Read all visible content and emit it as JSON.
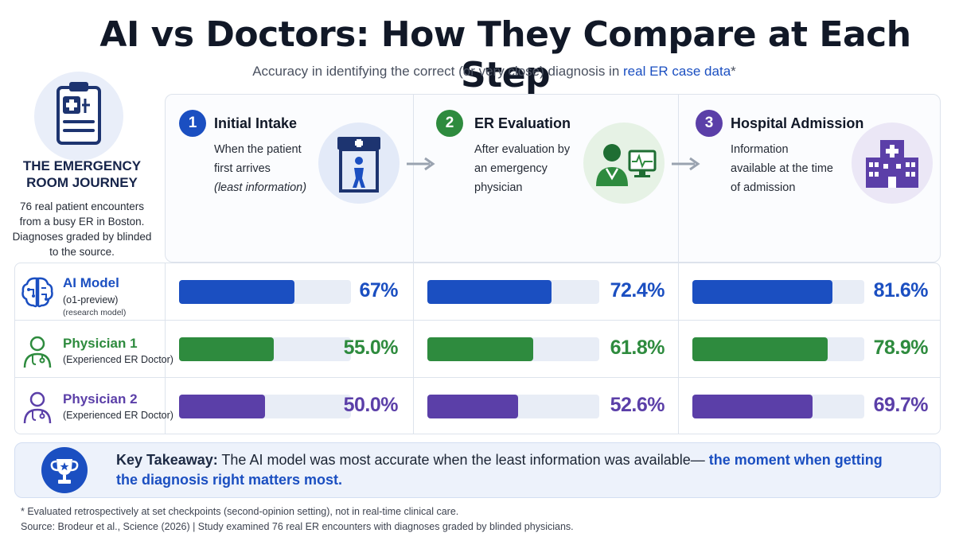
{
  "title": "AI vs Doctors: How They Compare at Each Step",
  "subtitle": {
    "lead": "Accuracy in identifying the correct (or very close) diagnosis in ",
    "highlight": "real ER case data",
    "tail": "*"
  },
  "journey": {
    "icon": "clipboard-medical-icon",
    "title": "THE EMERGENCY ROOM JOURNEY",
    "description": "76 real patient encounters from a busy ER in Boston. Diagnoses graded by blinded to the source."
  },
  "stages": [
    {
      "number": "1",
      "title": "Initial Intake",
      "desc_lines": [
        "When the patient first arrives"
      ],
      "desc_italic": "(least information)",
      "icon": "hospital-door-patient-icon",
      "color": "#1b4fc1"
    },
    {
      "number": "2",
      "title": "ER Evaluation",
      "desc_lines": [
        "After evaluation by an emergency physician"
      ],
      "desc_italic": "",
      "icon": "doctor-monitor-icon",
      "color": "#2e8b3e"
    },
    {
      "number": "3",
      "title": "Hospital Admission",
      "desc_lines": [
        "Information available at the time of admission"
      ],
      "desc_italic": "",
      "icon": "hospital-building-icon",
      "color": "#5b3fa8"
    }
  ],
  "participants": [
    {
      "name": "AI Model",
      "sub": "(o1-preview)",
      "sub2": "(research model)",
      "icon": "brain-circuit-icon",
      "color": "#1b4fc1"
    },
    {
      "name": "Physician 1",
      "sub": "(Experienced ER Doctor)",
      "sub2": "",
      "icon": "doctor-icon",
      "color": "#2e8b3e"
    },
    {
      "name": "Physician 2",
      "sub": "(Experienced ER Doctor)",
      "sub2": "",
      "icon": "doctor-icon",
      "color": "#5b3fa8"
    }
  ],
  "chart_data": {
    "type": "bar",
    "categories": [
      "Initial Intake",
      "ER Evaluation",
      "Hospital Admission"
    ],
    "series": [
      {
        "name": "AI Model",
        "values": [
          67,
          72.4,
          81.6
        ],
        "labels": [
          "67%",
          "72.4%",
          "81.6%"
        ]
      },
      {
        "name": "Physician 1",
        "values": [
          55.0,
          61.8,
          78.9
        ],
        "labels": [
          "55.0%",
          "61.8%",
          "78.9%"
        ]
      },
      {
        "name": "Physician 2",
        "values": [
          50.0,
          52.6,
          69.7
        ],
        "labels": [
          "50.0%",
          "52.6%",
          "69.7%"
        ]
      }
    ],
    "xlim": [
      0,
      100
    ],
    "orientation": "horizontal"
  },
  "takeaway": {
    "icon": "trophy-icon",
    "label": "Key Takeaway:",
    "text": " The AI model was most accurate when the least information was available— ",
    "emphasis": "the moment when getting the diagnosis right matters most."
  },
  "footnote": "* Evaluated retrospectively at set checkpoints (second-opinion setting), not in real-time clinical care.",
  "source": "Source: Brodeur et al., Science (2026)  |  Study examined 76 real ER encounters with diagnoses graded by blinded physicians."
}
